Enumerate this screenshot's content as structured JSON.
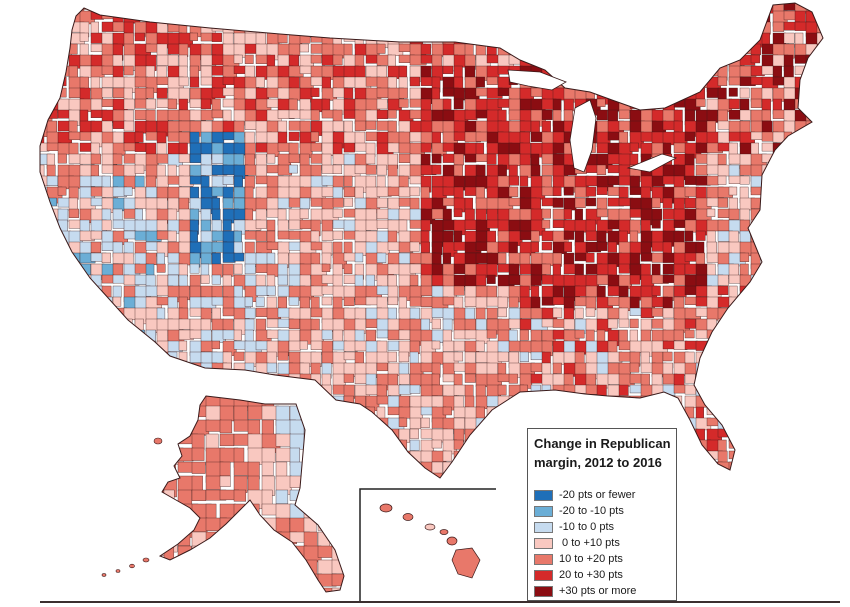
{
  "legend": {
    "title_line1": "Change in Republican",
    "title_line2": "margin, 2012 to 2016",
    "items": [
      {
        "label": "-20 pts or fewer",
        "color": "#1f6fb8"
      },
      {
        "label": "-20 to -10 pts",
        "color": "#6baed6"
      },
      {
        "label": "-10 to 0 pts",
        "color": "#c6dbef"
      },
      {
        "label": " 0 to +10 pts",
        "color": "#f9c8c0"
      },
      {
        "label": "10 to +20 pts",
        "color": "#e8786a"
      },
      {
        "label": "20 to +30 pts",
        "color": "#d42a2a"
      },
      {
        "label": "+30 pts or more",
        "color": "#8b0d12"
      }
    ]
  },
  "colors": {
    "border": "#3a1a1a",
    "background": "#ffffff"
  }
}
